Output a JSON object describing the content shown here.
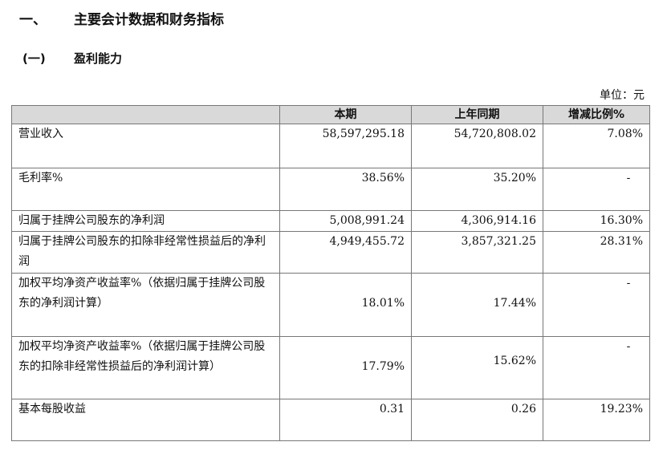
{
  "section": {
    "number": "一、",
    "title": "主要会计数据和财务指标"
  },
  "subsection": {
    "number": "(一)",
    "title": "盈利能力"
  },
  "unit_label": "单位：元",
  "table": {
    "headers": [
      "",
      "本期",
      "上年同期",
      "增减比例%"
    ],
    "rows": [
      {
        "label": "营业收入",
        "current": "58,597,295.18",
        "previous": "54,720,808.02",
        "change": "7.08%"
      },
      {
        "label": "毛利率%",
        "current": "38.56%",
        "previous": "35.20%",
        "change": "-"
      },
      {
        "label": "归属于挂牌公司股东的净利润",
        "current": "5,008,991.24",
        "previous": "4,306,914.16",
        "change": "16.30%"
      },
      {
        "label": "归属于挂牌公司股东的扣除非经常性损益后的净利润",
        "current": "4,949,455.72",
        "previous": "3,857,321.25",
        "change": "28.31%"
      },
      {
        "label": "加权平均净资产收益率%（依据归属于挂牌公司股东的净利润计算）",
        "current": "18.01%",
        "previous": "17.44%",
        "change": "-"
      },
      {
        "label": "加权平均净资产收益率%（依据归属于挂牌公司股东的扣除非经常性损益后的净利润计算）",
        "current": "17.79%",
        "previous": "15.62%",
        "change": "-"
      },
      {
        "label": "基本每股收益",
        "current": "0.31",
        "previous": "0.26",
        "change": "19.23%"
      }
    ]
  }
}
